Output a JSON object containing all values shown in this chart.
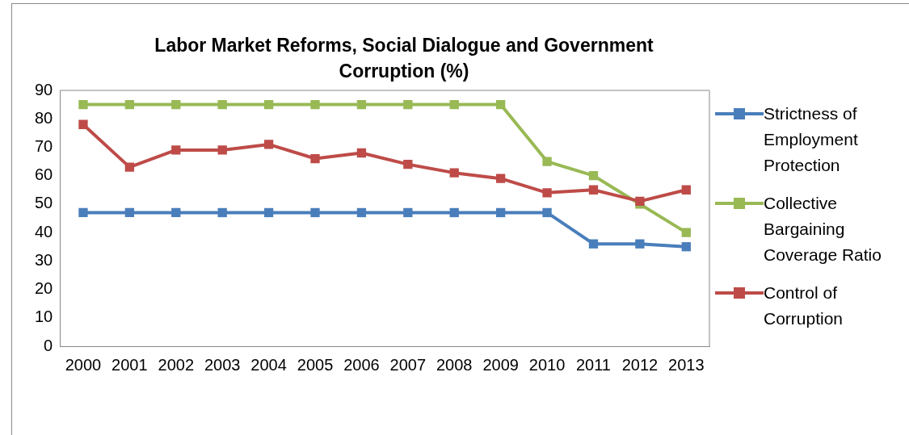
{
  "chart_data": {
    "type": "line",
    "title": "Labor Market Reforms, Social Dialogue and Government Corruption (%)",
    "categories": [
      "2000",
      "2001",
      "2002",
      "2003",
      "2004",
      "2005",
      "2006",
      "2007",
      "2008",
      "2009",
      "2010",
      "2011",
      "2012",
      "2013"
    ],
    "series": [
      {
        "name": "Strictness of Employment Protection",
        "color": "#4a7ebb",
        "values": [
          47,
          47,
          47,
          47,
          47,
          47,
          47,
          47,
          47,
          47,
          47,
          36,
          36,
          35
        ]
      },
      {
        "name": "Collective Bargaining Coverage Ratio",
        "color": "#98b954",
        "values": [
          85,
          85,
          85,
          85,
          85,
          85,
          85,
          85,
          85,
          85,
          65,
          60,
          50,
          40
        ]
      },
      {
        "name": "Control of Corruption",
        "color": "#be4b48",
        "values": [
          78,
          63,
          69,
          69,
          71,
          66,
          68,
          64,
          61,
          59,
          54,
          55,
          51,
          55
        ]
      }
    ],
    "ylim": [
      0,
      90
    ],
    "yticks": [
      0,
      10,
      20,
      30,
      40,
      50,
      60,
      70,
      80,
      90
    ],
    "grid": false,
    "legend": "right",
    "marker": "square",
    "line_style": "solid"
  }
}
